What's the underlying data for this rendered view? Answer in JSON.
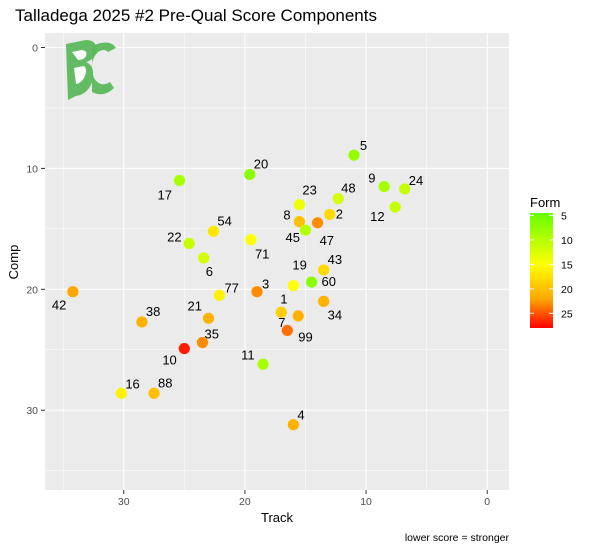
{
  "chart_data": {
    "type": "scatter",
    "title": "Talladega 2025 #2 Pre-Qual Score Components",
    "xlabel": "Track",
    "ylabel": "Comp",
    "caption": "lower score = stronger",
    "x_reversed": true,
    "y_reversed": true,
    "xlim": [
      36.5,
      -1.8
    ],
    "ylim": [
      -1.2,
      36.6
    ],
    "x_ticks": [
      30,
      20,
      10,
      0
    ],
    "y_ticks": [
      0,
      10,
      20,
      30
    ],
    "grid": true,
    "logo": "BC monogram",
    "legend": {
      "title": "Form",
      "position": "right",
      "ticks": [
        5,
        10,
        15,
        20,
        25
      ],
      "range": [
        4.5,
        28
      ],
      "colors": [
        "#00ff00",
        "#ffff00",
        "#ff0000"
      ]
    },
    "points": [
      {
        "label": "5",
        "x": 11.0,
        "y": 8.9,
        "form": 8
      },
      {
        "label": "9",
        "x": 8.5,
        "y": 11.5,
        "form": 9
      },
      {
        "label": "24",
        "x": 6.8,
        "y": 11.7,
        "form": 11
      },
      {
        "label": "12",
        "x": 7.6,
        "y": 13.2,
        "form": 11
      },
      {
        "label": "20",
        "x": 19.6,
        "y": 10.5,
        "form": 7
      },
      {
        "label": "17",
        "x": 25.4,
        "y": 11.0,
        "form": 9
      },
      {
        "label": "23",
        "x": 15.5,
        "y": 13.0,
        "form": 14
      },
      {
        "label": "48",
        "x": 12.3,
        "y": 12.5,
        "form": 12
      },
      {
        "label": "8",
        "x": 15.5,
        "y": 14.4,
        "form": 20
      },
      {
        "label": "2",
        "x": 13.0,
        "y": 13.8,
        "form": 18
      },
      {
        "label": "47",
        "x": 14.0,
        "y": 14.5,
        "form": 23
      },
      {
        "label": "45",
        "x": 15.0,
        "y": 15.1,
        "form": 10
      },
      {
        "label": "54",
        "x": 22.6,
        "y": 15.2,
        "form": 17
      },
      {
        "label": "22",
        "x": 24.6,
        "y": 16.2,
        "form": 11
      },
      {
        "label": "71",
        "x": 19.5,
        "y": 15.9,
        "form": 15
      },
      {
        "label": "6",
        "x": 23.4,
        "y": 17.4,
        "form": 12
      },
      {
        "label": "19",
        "x": 16.0,
        "y": 19.7,
        "form": 15
      },
      {
        "label": "60",
        "x": 14.5,
        "y": 19.4,
        "form": 7
      },
      {
        "label": "43",
        "x": 13.5,
        "y": 18.4,
        "form": 18
      },
      {
        "label": "34",
        "x": 13.5,
        "y": 21.0,
        "form": 21
      },
      {
        "label": "77",
        "x": 22.1,
        "y": 20.5,
        "form": 16
      },
      {
        "label": "3",
        "x": 19.0,
        "y": 20.2,
        "form": 23
      },
      {
        "label": "42",
        "x": 34.2,
        "y": 20.2,
        "form": 22
      },
      {
        "label": "1",
        "x": 17.0,
        "y": 21.9,
        "form": 19
      },
      {
        "label": "7",
        "x": 15.6,
        "y": 22.2,
        "form": 21
      },
      {
        "label": "99",
        "x": 16.5,
        "y": 23.4,
        "form": 24
      },
      {
        "label": "38",
        "x": 28.5,
        "y": 22.7,
        "form": 21
      },
      {
        "label": "21",
        "x": 23.0,
        "y": 22.4,
        "form": 21
      },
      {
        "label": "35",
        "x": 23.5,
        "y": 24.4,
        "form": 23
      },
      {
        "label": "10",
        "x": 25.0,
        "y": 24.9,
        "form": 27
      },
      {
        "label": "11",
        "x": 18.5,
        "y": 26.2,
        "form": 9
      },
      {
        "label": "16",
        "x": 30.2,
        "y": 28.6,
        "form": 16
      },
      {
        "label": "88",
        "x": 27.5,
        "y": 28.6,
        "form": 20
      },
      {
        "label": "4",
        "x": 16.0,
        "y": 31.2,
        "form": 21
      }
    ]
  }
}
